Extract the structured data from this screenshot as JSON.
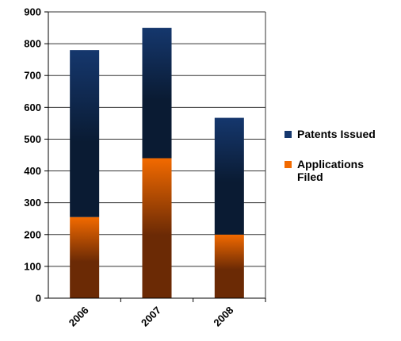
{
  "chart_data": {
    "type": "bar",
    "stacked": true,
    "categories": [
      "2006",
      "2007",
      "2008"
    ],
    "series": [
      {
        "name": "Applications Filed",
        "values": [
          255,
          440,
          200
        ],
        "color": "#f26a00",
        "color_dark": "#6b2a05"
      },
      {
        "name": "Patents Issued",
        "values": [
          525,
          410,
          367
        ],
        "color": "#15376d",
        "color_dark": "#0a1b33"
      }
    ],
    "ylim": [
      0,
      900
    ],
    "yticks": [
      "0",
      "100",
      "200",
      "300",
      "400",
      "500",
      "600",
      "700",
      "800",
      "900"
    ],
    "grid": true,
    "legend_position": "right",
    "legend": [
      {
        "label_lines": [
          "Patents Issued"
        ],
        "color": "#15376d"
      },
      {
        "label_lines": [
          "Applications",
          "Filed"
        ],
        "color": "#f26a00"
      }
    ],
    "xtick_rotation_deg": -45
  }
}
